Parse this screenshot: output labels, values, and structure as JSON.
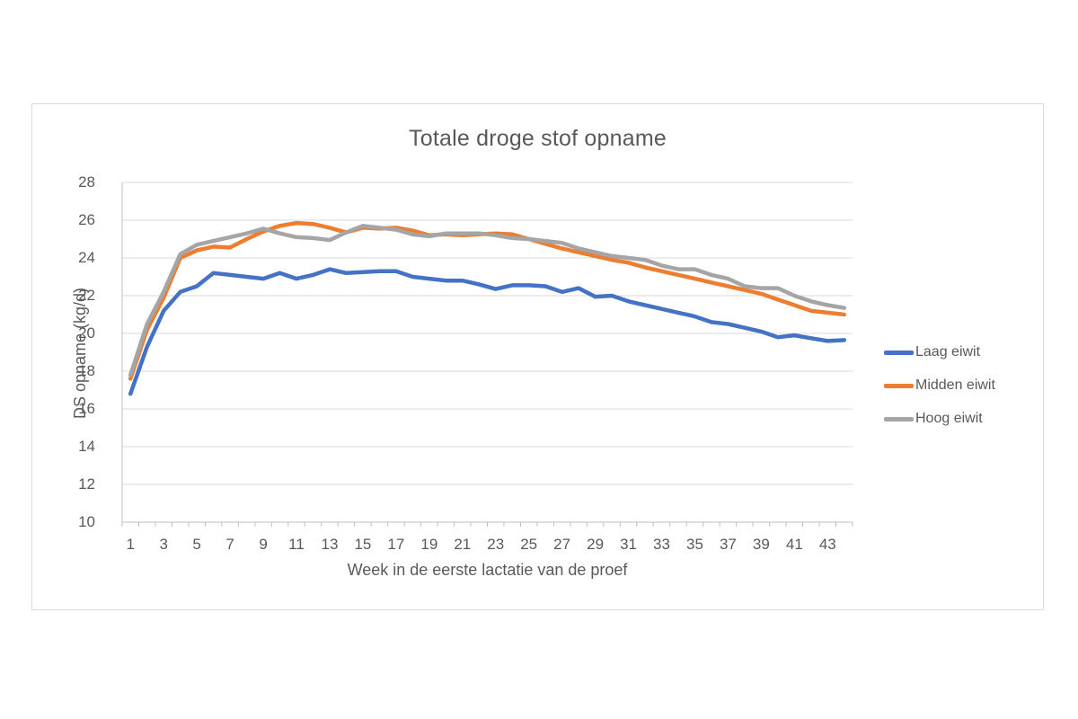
{
  "chart": {
    "title": "Totale droge stof opname",
    "x_axis_title": "Week in de eerste lactatie van de proef",
    "y_axis_title": "DS opname (kg/d)"
  },
  "chart_data": {
    "type": "line",
    "title": "Totale droge stof opname",
    "xlabel": "Week in de eerste lactatie van de proef",
    "ylabel": "DS opname (kg/d)",
    "x": [
      1,
      2,
      3,
      4,
      5,
      6,
      7,
      8,
      9,
      10,
      11,
      12,
      13,
      14,
      15,
      16,
      17,
      18,
      19,
      20,
      21,
      22,
      23,
      24,
      25,
      26,
      27,
      28,
      29,
      30,
      31,
      32,
      33,
      34,
      35,
      36,
      37,
      38,
      39,
      40,
      41,
      42,
      43,
      44
    ],
    "x_tick_labels": [
      "1",
      "3",
      "5",
      "7",
      "9",
      "11",
      "13",
      "15",
      "17",
      "19",
      "21",
      "23",
      "25",
      "27",
      "29",
      "31",
      "33",
      "35",
      "37",
      "39",
      "41",
      "43"
    ],
    "x_label_interval": 2,
    "ylim": [
      10,
      28
    ],
    "y_ticks": [
      10,
      12,
      14,
      16,
      18,
      20,
      22,
      24,
      26,
      28
    ],
    "grid": "horizontal-on",
    "legend_position": "right",
    "series": [
      {
        "name": "Laag eiwit",
        "color": "#4472C4",
        "values": [
          16.8,
          19.3,
          21.2,
          22.2,
          22.5,
          23.2,
          23.1,
          23.0,
          22.9,
          23.2,
          22.9,
          23.1,
          23.4,
          23.2,
          23.25,
          23.3,
          23.3,
          23.0,
          22.9,
          22.8,
          22.8,
          22.6,
          22.35,
          22.55,
          22.55,
          22.5,
          22.2,
          22.4,
          21.95,
          22.0,
          21.7,
          21.5,
          21.3,
          21.1,
          20.9,
          20.6,
          20.5,
          20.3,
          20.1,
          19.8,
          19.9,
          19.75,
          19.6,
          19.65
        ]
      },
      {
        "name": "Midden eiwit",
        "color": "#ED7D31",
        "values": [
          17.6,
          20.2,
          21.9,
          24.0,
          24.4,
          24.6,
          24.55,
          25.0,
          25.4,
          25.7,
          25.85,
          25.8,
          25.6,
          25.35,
          25.6,
          25.55,
          25.6,
          25.45,
          25.2,
          25.25,
          25.2,
          25.25,
          25.3,
          25.25,
          25.0,
          24.75,
          24.5,
          24.3,
          24.1,
          23.9,
          23.75,
          23.5,
          23.3,
          23.1,
          22.9,
          22.7,
          22.5,
          22.3,
          22.1,
          21.8,
          21.5,
          21.2,
          21.1,
          21.0
        ]
      },
      {
        "name": "Hoog eiwit",
        "color": "#A5A5A5",
        "values": [
          17.8,
          20.5,
          22.2,
          24.2,
          24.7,
          24.9,
          25.1,
          25.3,
          25.55,
          25.3,
          25.1,
          25.05,
          24.95,
          25.35,
          25.7,
          25.6,
          25.5,
          25.25,
          25.15,
          25.3,
          25.3,
          25.3,
          25.2,
          25.05,
          25.0,
          24.9,
          24.8,
          24.5,
          24.3,
          24.1,
          24.0,
          23.9,
          23.6,
          23.4,
          23.4,
          23.1,
          22.9,
          22.5,
          22.4,
          22.4,
          22.0,
          21.7,
          21.5,
          21.35
        ]
      }
    ],
    "style": {
      "grid_color": "#D9D9D9",
      "axis_color": "#BFBFBF",
      "text_color": "#595959",
      "line_width": 4.5
    }
  }
}
